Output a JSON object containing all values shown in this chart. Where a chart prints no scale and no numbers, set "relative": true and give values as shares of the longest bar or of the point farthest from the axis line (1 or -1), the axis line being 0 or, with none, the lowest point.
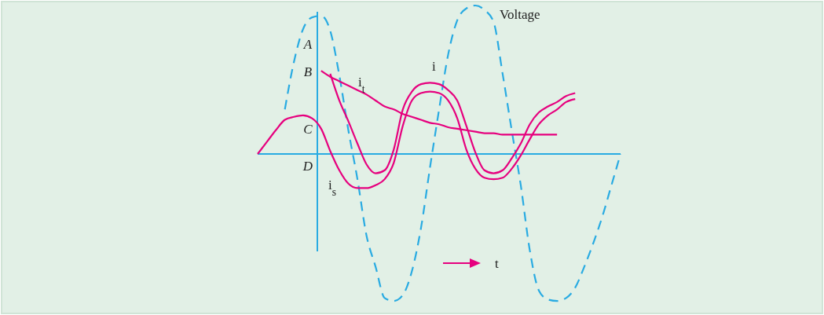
{
  "chart_data": {
    "type": "line",
    "relative": true,
    "legend": false,
    "marker": "none",
    "ref_lines": [
      {
        "axis": "y",
        "value": 0,
        "color": "#29abe2"
      }
    ],
    "categories": [
      null,
      null,
      null,
      null,
      null,
      null,
      null,
      null,
      null,
      null,
      null,
      null,
      null,
      null,
      null,
      null,
      null,
      null,
      null,
      null,
      null,
      null,
      null,
      null,
      null,
      null,
      null,
      null,
      null,
      null,
      null,
      null,
      null,
      null,
      null,
      null,
      null,
      null,
      null,
      null,
      null
    ],
    "series": [
      {
        "name": "Voltage",
        "color": "#29abe2",
        "line_style": "dashed",
        "values": [
          null,
          null,
          null,
          0.3,
          0.62,
          0.84,
          0.92,
          0.93,
          0.83,
          0.53,
          0.16,
          -0.17,
          -0.55,
          -0.76,
          -0.97,
          -0.99,
          -0.95,
          -0.79,
          -0.5,
          -0.09,
          0.3,
          0.67,
          0.9,
          0.98,
          1.0,
          0.97,
          0.89,
          0.54,
          0.16,
          -0.21,
          -0.65,
          -0.92,
          -0.98,
          -0.99,
          -0.97,
          -0.9,
          -0.76,
          -0.6,
          -0.42,
          -0.21,
          0
        ]
      },
      {
        "name": "i$_{s}$",
        "color": "#e6007e",
        "line_style": "solid",
        "values": [
          0,
          0.08,
          0.16,
          0.23,
          0.25,
          0.26,
          0.24,
          0.17,
          0.02,
          -0.11,
          -0.2,
          -0.23,
          -0.23,
          -0.21,
          -0.17,
          -0.06,
          0.19,
          0.36,
          0.41,
          0.42,
          0.41,
          0.36,
          0.24,
          0.03,
          -0.1,
          -0.16,
          -0.17,
          -0.16,
          -0.1,
          -0.01,
          0.1,
          0.2,
          0.26,
          0.3,
          0.35,
          0.37,
          null,
          null,
          null,
          null,
          null
        ]
      },
      {
        "name": "i$_{t}$",
        "color": "#e6007e",
        "line_style": "solid",
        "values": [
          null,
          null,
          null,
          null,
          null,
          null,
          null,
          0.56,
          0.52,
          0.49,
          0.46,
          0.43,
          0.4,
          0.36,
          0.32,
          0.3,
          0.27,
          0.25,
          0.23,
          0.21,
          0.2,
          0.18,
          0.17,
          0.16,
          0.15,
          0.14,
          0.14,
          0.13,
          0.13,
          0.13,
          0.13,
          0.13,
          0.13,
          0.13,
          null,
          null,
          null,
          null,
          null,
          null,
          null
        ]
      },
      {
        "name": "i",
        "color": "#e6007e",
        "line_style": "solid",
        "values": [
          null,
          null,
          null,
          null,
          null,
          null,
          null,
          null,
          0.54,
          0.36,
          0.22,
          0.07,
          -0.07,
          -0.13,
          -0.11,
          0.03,
          0.3,
          0.42,
          0.47,
          0.48,
          0.47,
          0.43,
          0.36,
          0.19,
          0.01,
          -0.11,
          -0.13,
          -0.11,
          -0.03,
          0.07,
          0.2,
          0.28,
          0.32,
          0.35,
          0.39,
          0.41,
          null,
          null,
          null,
          null,
          null
        ]
      }
    ],
    "annotations": [
      "A",
      "B",
      "C",
      "D",
      "t"
    ]
  }
}
